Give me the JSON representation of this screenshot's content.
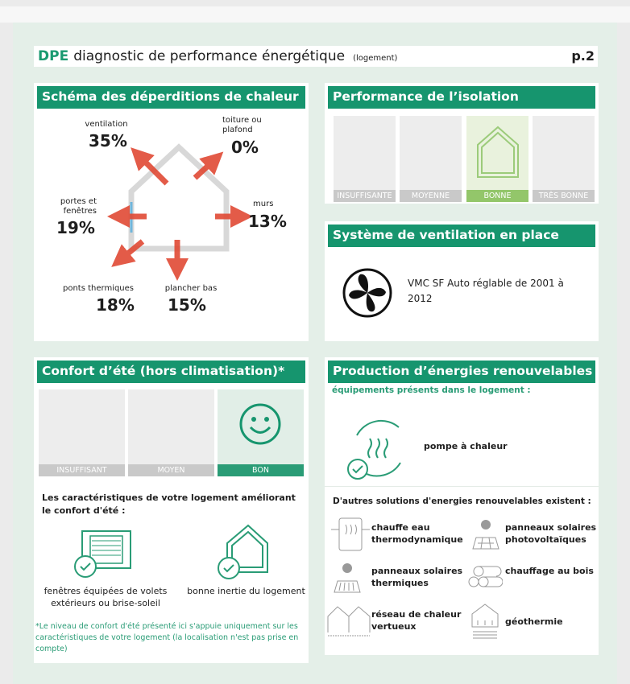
{
  "header": {
    "brand": "DPE",
    "title": "diagnostic de performance énergétique",
    "subtitle": "(logement)",
    "page": "p.2"
  },
  "heat_loss": {
    "title": "Schéma des déperditions de chaleur",
    "items": [
      {
        "label": "ventilation",
        "value": "35%"
      },
      {
        "label": "toiture ou plafond",
        "value": "0%"
      },
      {
        "label": "portes et fenêtres",
        "value": "19%"
      },
      {
        "label": "murs",
        "value": "13%"
      },
      {
        "label": "ponts thermiques",
        "value": "18%"
      },
      {
        "label": "plancher bas",
        "value": "15%"
      }
    ],
    "arrow_color": "#e04a35"
  },
  "insulation": {
    "title": "Performance de l’isolation",
    "levels": [
      "INSUFFISANTE",
      "MOYENNE",
      "BONNE",
      "TRÈS BONNE"
    ],
    "selected": "BONNE"
  },
  "ventilation": {
    "title": "Système de ventilation en place",
    "system": "VMC SF Auto réglable de 2001 à 2012",
    "icon": "fan-icon"
  },
  "summer": {
    "title": "Confort d’été (hors climatisation)*",
    "levels": [
      "INSUFFISANT",
      "MOYEN",
      "BON"
    ],
    "selected": "BON",
    "features_intro": "Les caractéristiques de votre logement améliorant le confort d'été :",
    "features": [
      {
        "label": "fenêtres équipées de volets extérieurs ou brise-soleil",
        "icon": "shutter-window-icon"
      },
      {
        "label": "bonne inertie du logement",
        "icon": "house-check-icon"
      }
    ],
    "footnote": "*Le niveau de confort d'été présenté ici s'appuie uniquement sur les caractéristiques de votre logement (la localisation n'est pas prise en compte)"
  },
  "renewables": {
    "title": "Production d’énergies renouvelables",
    "present_label": "équipements présents dans le logement :",
    "present": [
      {
        "label": "pompe à chaleur",
        "icon": "heat-pump-icon"
      }
    ],
    "others_label": "D'autres solutions d'energies renouvelables existent :",
    "others": [
      {
        "label": "chauffe eau thermodynamique"
      },
      {
        "label": "panneaux solaires photovoltaïques"
      },
      {
        "label": "panneaux solaires thermiques"
      },
      {
        "label": "chauffage au bois"
      },
      {
        "label": "réseau de chaleur vertueux"
      },
      {
        "label": "géothermie"
      }
    ]
  },
  "colors": {
    "green": "#16956e",
    "light_green": "#93c66a",
    "background": "#e4efe8"
  }
}
